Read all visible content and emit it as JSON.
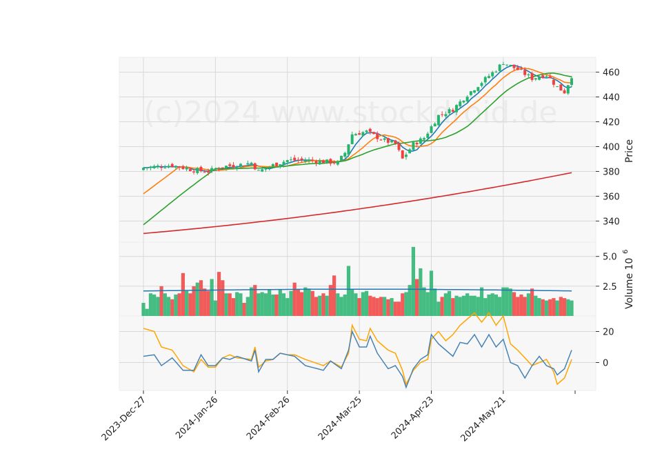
{
  "watermark": "(c)2024 www.stockdroid.de",
  "colors": {
    "up": "#26b36d",
    "down": "#f0413f",
    "grid": "#d8d8d8",
    "panel_bg": "#f7f7f7",
    "ma1": "#1f77b4",
    "ma2": "#ff7f0e",
    "ma3": "#2ca02c",
    "ma4": "#d62728",
    "vol_ma": "#1f77b4",
    "osc1": "#4682b4",
    "osc2": "#ffa500"
  },
  "chart_data": {
    "type": "candlestick",
    "x_tick_labels": [
      "2023-Dec-27",
      "2024-Jan-26",
      "2024-Feb-26",
      "2024-Mar-25",
      "2024-Apr-23",
      "2024-May-21"
    ],
    "x_tick_indices": [
      0,
      20,
      40,
      60,
      80,
      100
    ],
    "num_bars": 120,
    "price_panel": {
      "ylabel": "Price",
      "yticks": [
        340,
        360,
        380,
        400,
        420,
        440,
        460
      ],
      "ylim": [
        323,
        472
      ],
      "close_anchors": [
        [
          0,
          383
        ],
        [
          8,
          385
        ],
        [
          14,
          381
        ],
        [
          18,
          380
        ],
        [
          22,
          384
        ],
        [
          26,
          385
        ],
        [
          30,
          387
        ],
        [
          32,
          380
        ],
        [
          36,
          385
        ],
        [
          40,
          389
        ],
        [
          46,
          389
        ],
        [
          50,
          388
        ],
        [
          54,
          387
        ],
        [
          56,
          395
        ],
        [
          58,
          410
        ],
        [
          62,
          412
        ],
        [
          66,
          406
        ],
        [
          70,
          402
        ],
        [
          72,
          390
        ],
        [
          75,
          402
        ],
        [
          78,
          407
        ],
        [
          82,
          425
        ],
        [
          86,
          430
        ],
        [
          90,
          442
        ],
        [
          94,
          452
        ],
        [
          98,
          462
        ],
        [
          100,
          468
        ],
        [
          104,
          462
        ],
        [
          108,
          455
        ],
        [
          112,
          458
        ],
        [
          115,
          448
        ],
        [
          117,
          444
        ],
        [
          119,
          457
        ]
      ],
      "moving_averages": [
        {
          "window": 5,
          "color": "ma1"
        },
        {
          "window": 10,
          "color": "ma2"
        },
        {
          "window": 20,
          "color": "ma3"
        },
        {
          "start": 330,
          "end": 379,
          "color": "ma4"
        }
      ]
    },
    "volume_panel": {
      "ylabel": "Volume  10",
      "ylabel_exponent": "6",
      "yticks": [
        2.5,
        5.0
      ],
      "ytick_labels": [
        "2.5",
        "5.0"
      ],
      "ylim": [
        0,
        6.2
      ],
      "values": [
        1.1,
        0.6,
        1.9,
        1.8,
        1.6,
        2.5,
        1.9,
        1.6,
        1.4,
        1.8,
        1.9,
        3.6,
        2.1,
        1.9,
        2.5,
        2.8,
        3.0,
        2.3,
        2.1,
        3.1,
        1.3,
        3.7,
        3.0,
        1.9,
        1.9,
        1.5,
        2.0,
        1.9,
        1.1,
        1.6,
        2.4,
        2.6,
        1.9,
        2.0,
        1.9,
        2.2,
        1.8,
        1.8,
        2.2,
        1.9,
        1.5,
        2.1,
        2.8,
        2.2,
        2.0,
        2.4,
        2.3,
        2.1,
        1.6,
        1.7,
        1.9,
        1.7,
        2.6,
        3.4,
        1.9,
        1.6,
        1.8,
        4.2,
        2.2,
        1.9,
        1.5,
        2.0,
        2.1,
        1.7,
        1.6,
        1.5,
        1.6,
        1.6,
        1.4,
        1.5,
        1.2,
        1.2,
        1.9,
        2.0,
        2.6,
        5.8,
        3.1,
        4.0,
        2.4,
        2.0,
        3.8,
        2.3,
        1.2,
        1.6,
        1.9,
        2.1,
        1.5,
        1.7,
        1.6,
        1.7,
        1.9,
        1.7,
        1.7,
        1.6,
        2.4,
        1.5,
        1.8,
        1.9,
        1.8,
        1.6,
        2.4,
        2.4,
        2.3,
        2.0,
        1.6,
        1.8,
        1.6,
        1.9,
        2.3,
        1.7,
        1.5,
        1.4,
        1.3,
        1.4,
        1.5,
        1.3,
        1.6,
        1.5,
        1.4,
        1.3
      ],
      "ma_level": [
        2.1,
        2.25
      ]
    },
    "oscillator_panel": {
      "yticks": [
        0,
        20
      ],
      "ylim": [
        -18,
        30
      ],
      "line1_anchors": [
        [
          0,
          4
        ],
        [
          3,
          5
        ],
        [
          5,
          -2
        ],
        [
          8,
          3
        ],
        [
          11,
          -5
        ],
        [
          14,
          -5
        ],
        [
          16,
          5
        ],
        [
          18,
          -2
        ],
        [
          20,
          -2
        ],
        [
          22,
          3
        ],
        [
          24,
          2
        ],
        [
          26,
          4
        ],
        [
          30,
          1
        ],
        [
          31,
          8
        ],
        [
          32,
          -6
        ],
        [
          34,
          2
        ],
        [
          36,
          2
        ],
        [
          38,
          6
        ],
        [
          40,
          5
        ],
        [
          42,
          4
        ],
        [
          45,
          -2
        ],
        [
          50,
          -5
        ],
        [
          52,
          1
        ],
        [
          55,
          -4
        ],
        [
          57,
          8
        ],
        [
          58,
          20
        ],
        [
          60,
          10
        ],
        [
          62,
          10
        ],
        [
          63,
          17
        ],
        [
          65,
          6
        ],
        [
          68,
          -4
        ],
        [
          70,
          -2
        ],
        [
          72,
          -9
        ],
        [
          73,
          -16
        ],
        [
          75,
          -4
        ],
        [
          77,
          2
        ],
        [
          79,
          5
        ],
        [
          80,
          18
        ],
        [
          82,
          12
        ],
        [
          84,
          8
        ],
        [
          86,
          4
        ],
        [
          88,
          13
        ],
        [
          90,
          12
        ],
        [
          92,
          18
        ],
        [
          94,
          10
        ],
        [
          96,
          18
        ],
        [
          98,
          10
        ],
        [
          100,
          15
        ],
        [
          102,
          0
        ],
        [
          104,
          -2
        ],
        [
          106,
          -10
        ],
        [
          108,
          -2
        ],
        [
          110,
          4
        ],
        [
          112,
          -2
        ],
        [
          114,
          -4
        ],
        [
          115,
          -8
        ],
        [
          117,
          -4
        ],
        [
          119,
          8
        ]
      ],
      "line2_anchors": [
        [
          0,
          22
        ],
        [
          3,
          20
        ],
        [
          5,
          10
        ],
        [
          8,
          8
        ],
        [
          11,
          -2
        ],
        [
          14,
          -6
        ],
        [
          16,
          2
        ],
        [
          18,
          -3
        ],
        [
          20,
          -3
        ],
        [
          22,
          3
        ],
        [
          24,
          5
        ],
        [
          26,
          3
        ],
        [
          30,
          2
        ],
        [
          31,
          10
        ],
        [
          32,
          -3
        ],
        [
          34,
          1
        ],
        [
          36,
          2
        ],
        [
          38,
          6
        ],
        [
          40,
          5
        ],
        [
          42,
          5
        ],
        [
          45,
          2
        ],
        [
          50,
          -2
        ],
        [
          52,
          1
        ],
        [
          55,
          -3
        ],
        [
          57,
          6
        ],
        [
          58,
          24
        ],
        [
          60,
          15
        ],
        [
          62,
          14
        ],
        [
          63,
          22
        ],
        [
          65,
          14
        ],
        [
          68,
          8
        ],
        [
          70,
          6
        ],
        [
          72,
          -5
        ],
        [
          73,
          -14
        ],
        [
          75,
          -5
        ],
        [
          77,
          0
        ],
        [
          79,
          2
        ],
        [
          80,
          15
        ],
        [
          82,
          20
        ],
        [
          84,
          14
        ],
        [
          86,
          18
        ],
        [
          88,
          24
        ],
        [
          90,
          28
        ],
        [
          92,
          32
        ],
        [
          94,
          26
        ],
        [
          96,
          32
        ],
        [
          98,
          24
        ],
        [
          100,
          30
        ],
        [
          102,
          12
        ],
        [
          104,
          8
        ],
        [
          106,
          3
        ],
        [
          108,
          -2
        ],
        [
          110,
          0
        ],
        [
          112,
          2
        ],
        [
          114,
          -6
        ],
        [
          115,
          -14
        ],
        [
          117,
          -10
        ],
        [
          119,
          2
        ]
      ]
    }
  }
}
